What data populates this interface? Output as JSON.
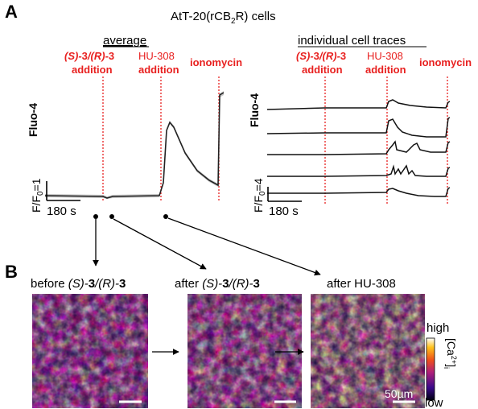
{
  "panel_a": {
    "letter": "A",
    "title_pre": "AtT-20(rCB",
    "title_sub": "2",
    "title_post": "R) cells",
    "left": {
      "heading": "average",
      "events": [
        {
          "line1_a": "(S)-",
          "line1_b": "3",
          "line1_c": "/(R)-",
          "line1_d": "3",
          "line2": "addition"
        },
        {
          "line1": "HU-308",
          "line2": "addition"
        },
        {
          "line1": "ionomycin"
        }
      ],
      "ylabel": "Fluo-4",
      "scale_y": "F/F",
      "scale_y_sub": "0",
      "scale_y_val": "=1",
      "scale_x": "180 s"
    },
    "right": {
      "heading": "individual cell traces",
      "events": [
        {
          "line1_a": "(S)-",
          "line1_b": "3",
          "line1_c": "/(R)-",
          "line1_d": "3",
          "line2": "addition"
        },
        {
          "line1": "HU-308",
          "line2": "addition"
        },
        {
          "line1": "ionomycin"
        }
      ],
      "ylabel": "Fluo-4",
      "scale_y": "F/F",
      "scale_y_sub": "0",
      "scale_y_val": "=4",
      "scale_x": "180 s"
    }
  },
  "panel_b": {
    "letter": "B",
    "images": [
      {
        "cap_pre": "before ",
        "cap_a": "(S)-",
        "cap_b": "3",
        "cap_c": "/(R)-",
        "cap_d": "3"
      },
      {
        "cap_pre": "after ",
        "cap_a": "(S)-",
        "cap_b": "3",
        "cap_c": "/(R)-",
        "cap_d": "3"
      },
      {
        "cap_pre": "after HU-308"
      }
    ],
    "colorbar": {
      "high": "high",
      "low": "low",
      "label_pre": "[Ca",
      "label_sup": "2+",
      "label_post": "]",
      "label_sub": "i"
    },
    "scalebar": "50µm"
  },
  "colors": {
    "event_line": "#e8201f",
    "trace": "#222222"
  }
}
